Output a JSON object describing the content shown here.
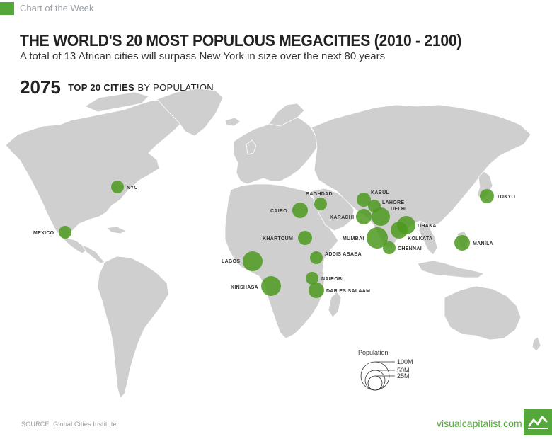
{
  "header": {
    "series": "Chart of the Week",
    "title": "THE WORLD'S 20 MOST POPULOUS MEGACITIES (2010 - 2100)",
    "subtitle": "A total of 13 African cities will surpass New York in size over the next 80 years",
    "year": "2075",
    "heading_bold": "TOP 20 CITIES",
    "heading_light": "BY POPULATION"
  },
  "legend": {
    "title": "Population",
    "labels": [
      "100M",
      "50M",
      "25M"
    ]
  },
  "cities": [
    {
      "name": "NYC",
      "lon": -74.0,
      "lat": 40.7
    },
    {
      "name": "MEXICO",
      "lon": -99.1,
      "lat": 19.4
    },
    {
      "name": "TOKYO",
      "lon": 139.7,
      "lat": 35.7
    },
    {
      "name": "MANILA",
      "lon": 121.0,
      "lat": 14.6
    },
    {
      "name": "BAGHDAD",
      "lon": 44.4,
      "lat": 33.3
    },
    {
      "name": "CAIRO",
      "lon": 31.2,
      "lat": 30.0
    },
    {
      "name": "KHARTOUM",
      "lon": 32.5,
      "lat": 15.6
    },
    {
      "name": "ADDIS ABABA",
      "lon": 38.7,
      "lat": 9.0
    },
    {
      "name": "LAGOS",
      "lon": 3.4,
      "lat": 6.5
    },
    {
      "name": "KINSHASA",
      "lon": 15.3,
      "lat": -4.3
    },
    {
      "name": "NAIROBI",
      "lon": 36.8,
      "lat": -1.3
    },
    {
      "name": "DAR ES SALAAM",
      "lon": 39.3,
      "lat": -6.8
    },
    {
      "name": "KABUL",
      "lon": 69.2,
      "lat": 34.5
    },
    {
      "name": "LAHORE",
      "lon": 74.3,
      "lat": 31.5
    },
    {
      "name": "DELHI",
      "lon": 77.2,
      "lat": 28.6
    },
    {
      "name": "KARACHI",
      "lon": 67.0,
      "lat": 24.9
    },
    {
      "name": "MUMBAI",
      "lon": 72.9,
      "lat": 19.1
    },
    {
      "name": "CHENNAI",
      "lon": 80.3,
      "lat": 13.1
    },
    {
      "name": "DHAKA",
      "lon": 90.4,
      "lat": 23.8
    },
    {
      "name": "KOLKATA",
      "lon": 88.4,
      "lat": 22.6
    }
  ],
  "footer": {
    "source": "SOURCE: Global Cities Institute",
    "brand": "visualcapitalist.com"
  },
  "colors": {
    "accent": "#54a83a",
    "bubble": "#4c9a1e",
    "land": "#cfcfcf"
  }
}
